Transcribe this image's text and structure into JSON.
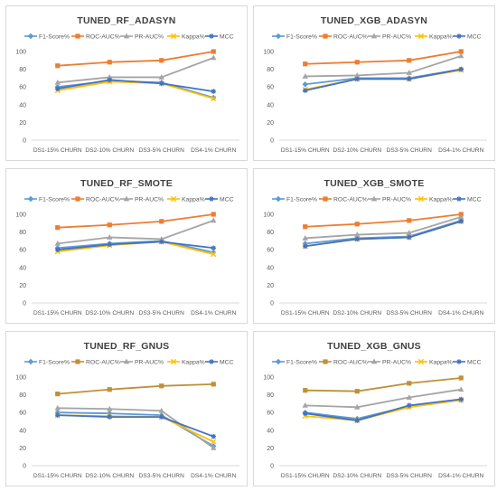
{
  "colors": {
    "f1": "#5B9BD5",
    "roc": "#ED7D31",
    "roc_gnus": "#C09038",
    "pr": "#A5A5A5",
    "kappa": "#FFC000",
    "mcc": "#4472C4",
    "axis_text": "#595959",
    "grid": "#e6e6e6"
  },
  "chart_data": [
    {
      "id": "rf-adasyn",
      "type": "line",
      "title": "TUNED_RF_ADASYN",
      "categories": [
        "DS1-15% CHURN",
        "DS2-10% CHURN",
        "DS3-5% CHURN",
        "DS4-1% CHURN"
      ],
      "yticks": [
        "0",
        "20",
        "40",
        "60",
        "80",
        "100"
      ],
      "ylim": [
        0,
        100
      ],
      "legend_position": "top",
      "grid": false,
      "series": [
        {
          "key": "f1",
          "name": "F1-Score%",
          "marker": "diamond",
          "values": [
            60,
            67,
            65,
            48
          ]
        },
        {
          "key": "roc",
          "name": "ROC-AUC%",
          "marker": "square",
          "values": [
            84,
            88,
            90,
            100
          ]
        },
        {
          "key": "pr",
          "name": "PR-AUC%",
          "marker": "triangle",
          "values": [
            65,
            71,
            71,
            93
          ]
        },
        {
          "key": "kappa",
          "name": "Kappa%",
          "marker": "x",
          "values": [
            56,
            66,
            64,
            47
          ]
        },
        {
          "key": "mcc",
          "name": "MCC",
          "marker": "star",
          "values": [
            58,
            68,
            64,
            55
          ]
        }
      ]
    },
    {
      "id": "xgb-adasyn",
      "type": "line",
      "title": "TUNED_XGB_ADASYN",
      "categories": [
        "DS1-15% CHURN",
        "DS2-10% CHURN",
        "DS3-5% CHURN",
        "DS4-1% CHURN"
      ],
      "yticks": [
        "0",
        "20",
        "40",
        "60",
        "80",
        "100"
      ],
      "ylim": [
        0,
        100
      ],
      "legend_position": "top",
      "grid": false,
      "series": [
        {
          "key": "f1",
          "name": "F1-Score%",
          "marker": "diamond",
          "values": [
            63,
            70,
            70,
            80
          ]
        },
        {
          "key": "roc",
          "name": "ROC-AUC%",
          "marker": "square",
          "values": [
            86,
            88,
            90,
            100
          ]
        },
        {
          "key": "pr",
          "name": "PR-AUC%",
          "marker": "triangle",
          "values": [
            72,
            73,
            76,
            95
          ]
        },
        {
          "key": "kappa",
          "name": "Kappa%",
          "marker": "x",
          "values": [
            57,
            69,
            69,
            79
          ]
        },
        {
          "key": "mcc",
          "name": "MCC",
          "marker": "star",
          "values": [
            56,
            69,
            69,
            80
          ]
        }
      ]
    },
    {
      "id": "rf-smote",
      "type": "line",
      "title": "TUNED_RF_SMOTE",
      "categories": [
        "DS1-15% CHURN",
        "DS2-10% CHURN",
        "DS3-5% CHURN",
        "DS4-1% CHURN"
      ],
      "yticks": [
        "0",
        "20",
        "40",
        "60",
        "80",
        "100"
      ],
      "ylim": [
        0,
        100
      ],
      "legend_position": "top",
      "grid": false,
      "series": [
        {
          "key": "f1",
          "name": "F1-Score%",
          "marker": "diamond",
          "values": [
            62,
            67,
            70,
            57
          ]
        },
        {
          "key": "roc",
          "name": "ROC-AUC%",
          "marker": "square",
          "values": [
            85,
            88,
            92,
            100
          ]
        },
        {
          "key": "pr",
          "name": "PR-AUC%",
          "marker": "triangle",
          "values": [
            67,
            74,
            72,
            93
          ]
        },
        {
          "key": "kappa",
          "name": "Kappa%",
          "marker": "x",
          "values": [
            58,
            65,
            69,
            55
          ]
        },
        {
          "key": "mcc",
          "name": "MCC",
          "marker": "star",
          "values": [
            60,
            66,
            69,
            62
          ]
        }
      ]
    },
    {
      "id": "xgb-smote",
      "type": "line",
      "title": "TUNED_XGB_SMOTE",
      "categories": [
        "DS1-15% CHURN",
        "DS2-10% CHURN",
        "DS3-5% CHURN",
        "DS4-1% CHURN"
      ],
      "yticks": [
        "0",
        "20",
        "40",
        "60",
        "80",
        "100"
      ],
      "ylim": [
        0,
        100
      ],
      "legend_position": "top",
      "grid": false,
      "series": [
        {
          "key": "f1",
          "name": "F1-Score%",
          "marker": "diamond",
          "values": [
            67,
            73,
            75,
            93
          ]
        },
        {
          "key": "roc",
          "name": "ROC-AUC%",
          "marker": "square",
          "values": [
            86,
            89,
            93,
            100
          ]
        },
        {
          "key": "pr",
          "name": "PR-AUC%",
          "marker": "triangle",
          "values": [
            73,
            77,
            79,
            97
          ]
        },
        {
          "key": "kappa",
          "name": "Kappa%",
          "marker": "x",
          "values": [
            64,
            72,
            74,
            92
          ]
        },
        {
          "key": "mcc",
          "name": "MCC",
          "marker": "star",
          "values": [
            64,
            72,
            74,
            92
          ]
        }
      ]
    },
    {
      "id": "rf-gnus",
      "type": "line",
      "title": "TUNED_RF_GNUS",
      "categories": [
        "DS1-15% CHURN",
        "DS2-10% CHURN",
        "DS3-5% CHURN",
        "DS4-1% CHURN"
      ],
      "yticks": [
        "0",
        "20",
        "40",
        "60",
        "80",
        "100"
      ],
      "ylim": [
        0,
        100
      ],
      "legend_position": "top",
      "grid": false,
      "series": [
        {
          "key": "f1",
          "name": "F1-Score%",
          "marker": "diamond",
          "values": [
            60,
            59,
            57,
            22
          ]
        },
        {
          "key": "roc_gnus",
          "name": "ROC-AUC%",
          "marker": "square",
          "values": [
            81,
            86,
            90,
            92
          ]
        },
        {
          "key": "pr",
          "name": "PR-AUC%",
          "marker": "triangle",
          "values": [
            65,
            64,
            62,
            20
          ]
        },
        {
          "key": "kappa",
          "name": "Kappa%",
          "marker": "x",
          "values": [
            57,
            56,
            55,
            27
          ]
        },
        {
          "key": "mcc",
          "name": "MCC",
          "marker": "star",
          "values": [
            57,
            55,
            55,
            33
          ]
        }
      ]
    },
    {
      "id": "xgb-gnus",
      "type": "line",
      "title": "TUNED_XGB_GNUS",
      "categories": [
        "DS1-15% CHURN",
        "DS2-10% CHURN",
        "DS3-5% CHURN",
        "DS4-1% CHURN"
      ],
      "yticks": [
        "0",
        "20",
        "40",
        "60",
        "80",
        "100"
      ],
      "ylim": [
        0,
        100
      ],
      "legend_position": "top",
      "grid": false,
      "series": [
        {
          "key": "f1",
          "name": "F1-Score%",
          "marker": "diamond",
          "values": [
            60,
            53,
            67,
            74
          ]
        },
        {
          "key": "roc_gnus",
          "name": "ROC-AUC%",
          "marker": "square",
          "values": [
            85,
            84,
            93,
            99
          ]
        },
        {
          "key": "pr",
          "name": "PR-AUC%",
          "marker": "triangle",
          "values": [
            68,
            66,
            77,
            86
          ]
        },
        {
          "key": "kappa",
          "name": "Kappa%",
          "marker": "x",
          "values": [
            56,
            51,
            66,
            74
          ]
        },
        {
          "key": "mcc",
          "name": "MCC",
          "marker": "star",
          "values": [
            59,
            51,
            68,
            75
          ]
        }
      ]
    }
  ]
}
